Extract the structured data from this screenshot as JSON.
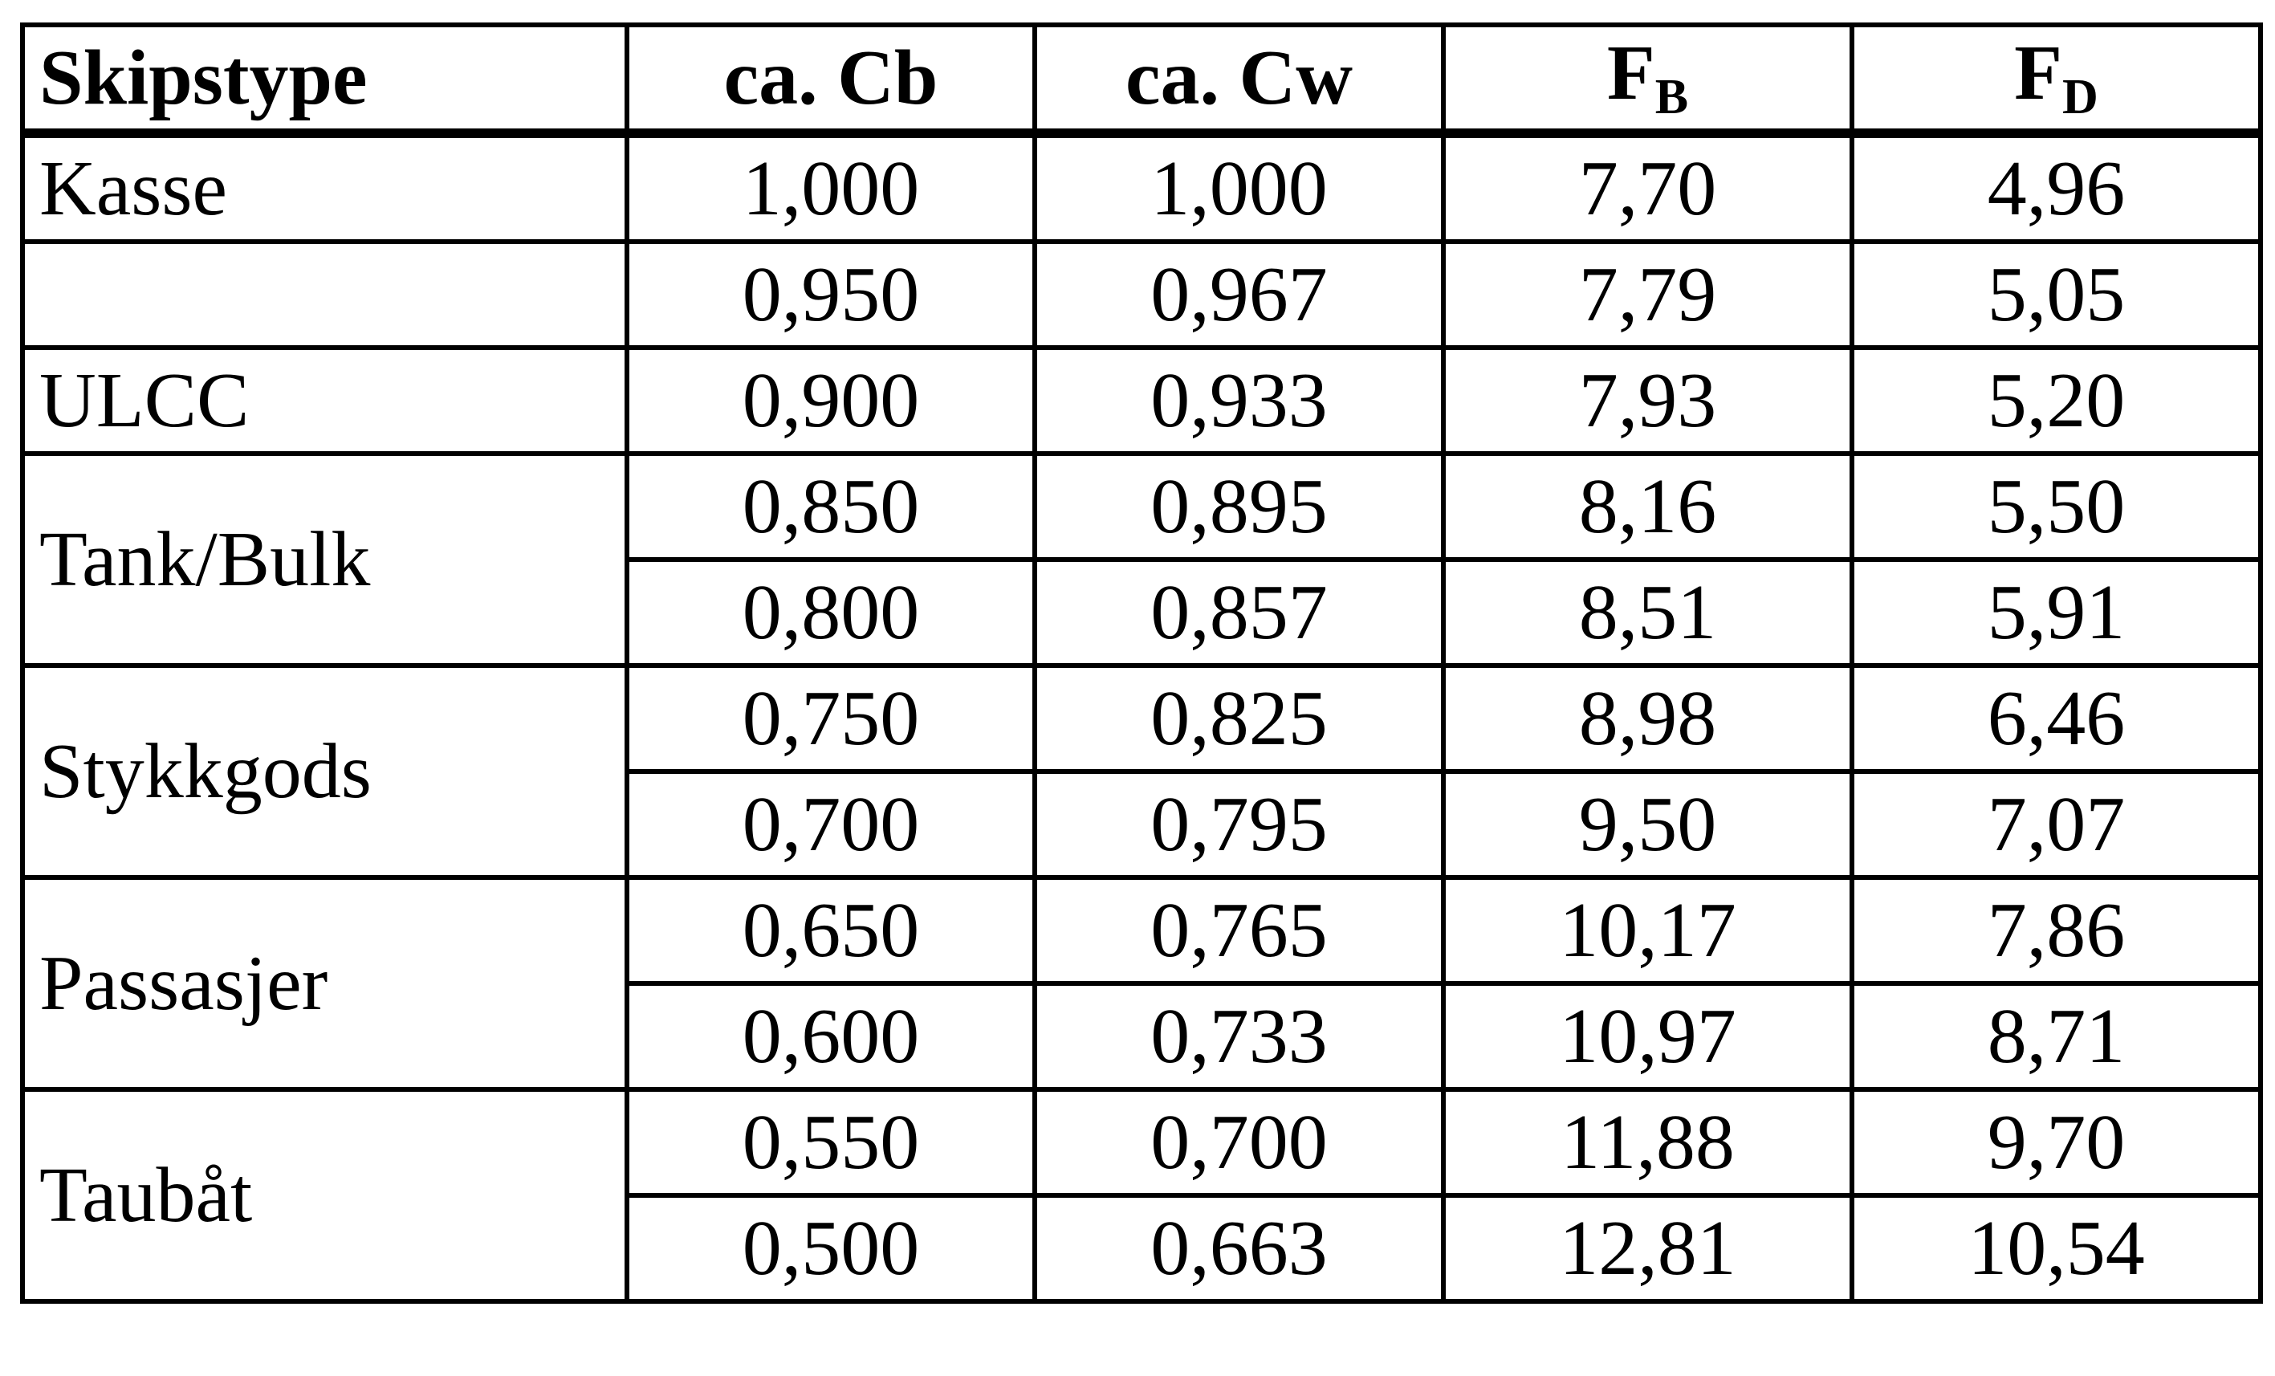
{
  "table": {
    "header": [
      "Skipstype",
      "ca. Cb",
      "ca. Cw",
      {
        "main": "F",
        "sub": "B"
      },
      {
        "main": "F",
        "sub": "D"
      }
    ],
    "groups": [
      {
        "label": "Kasse",
        "rows": [
          [
            "1,000",
            "1,000",
            "7,70",
            "4,96"
          ]
        ]
      },
      {
        "rows": [
          [
            "0,950",
            "0,967",
            "7,79",
            "5,05"
          ]
        ]
      },
      {
        "label": "ULCC",
        "rows": [
          [
            "0,900",
            "0,933",
            "7,93",
            "5,20"
          ]
        ]
      },
      {
        "label": "Tank/Bulk",
        "rows": [
          [
            "0,850",
            "0,895",
            "8,16",
            "5,50"
          ],
          [
            "0,800",
            "0,857",
            "8,51",
            "5,91"
          ]
        ]
      },
      {
        "label": "Stykkgods",
        "rows": [
          [
            "0,750",
            "0,825",
            "8,98",
            "6,46"
          ],
          [
            "0,700",
            "0,795",
            "9,50",
            "7,07"
          ]
        ]
      },
      {
        "label": "Passasjer",
        "rows": [
          [
            "0,650",
            "0,765",
            "10,17",
            "7,86"
          ],
          [
            "0,600",
            "0,733",
            "10,97",
            "8,71"
          ]
        ]
      },
      {
        "label": "Taubåt",
        "rows": [
          [
            "0,550",
            "0,700",
            "11,88",
            "9,70"
          ],
          [
            "0,500",
            "0,663",
            "12,81",
            "10,54"
          ]
        ]
      }
    ]
  }
}
